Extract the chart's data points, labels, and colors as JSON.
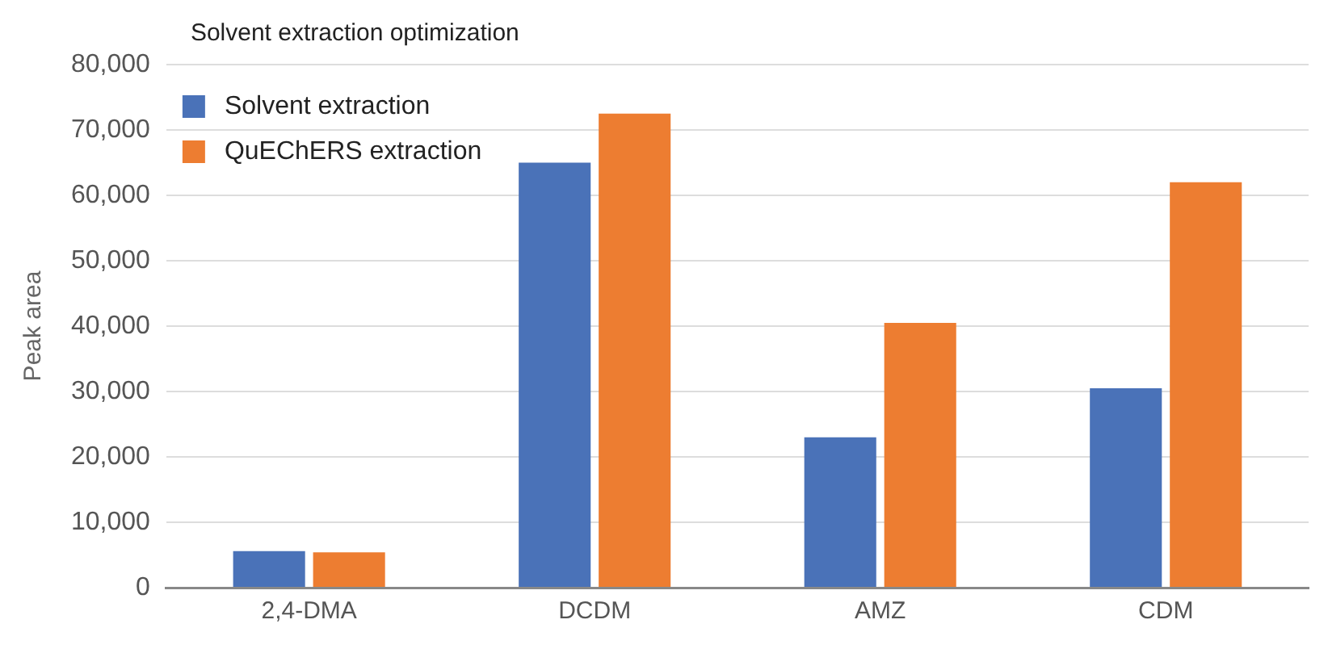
{
  "chart_data": {
    "type": "bar",
    "title": "Solvent extraction optimization",
    "ylabel": "Peak area",
    "categories": [
      "2,4-DMA",
      "DCDM",
      "AMZ",
      "CDM"
    ],
    "series": [
      {
        "name": "Solvent extraction",
        "color": "#4a72b8",
        "values": [
          5600,
          65000,
          23000,
          30500
        ]
      },
      {
        "name": "QuEChERS extraction",
        "color": "#ed7d31",
        "values": [
          5400,
          72500,
          40500,
          62000
        ]
      }
    ],
    "ylim": [
      0,
      80000
    ],
    "yticks": [
      0,
      {
        "value": 10000,
        "label": "10,000"
      },
      {
        "value": 20000,
        "label": "20,000"
      },
      {
        "value": 30000,
        "label": "30,000"
      },
      {
        "value": 40000,
        "label": "40,000"
      },
      {
        "value": 50000,
        "label": "50,000"
      },
      {
        "value": 60000,
        "label": "60,000"
      },
      {
        "value": 70000,
        "label": "70,000"
      },
      {
        "value": 80000,
        "label": "80,000"
      }
    ],
    "grid": "y",
    "legend": "top left"
  }
}
